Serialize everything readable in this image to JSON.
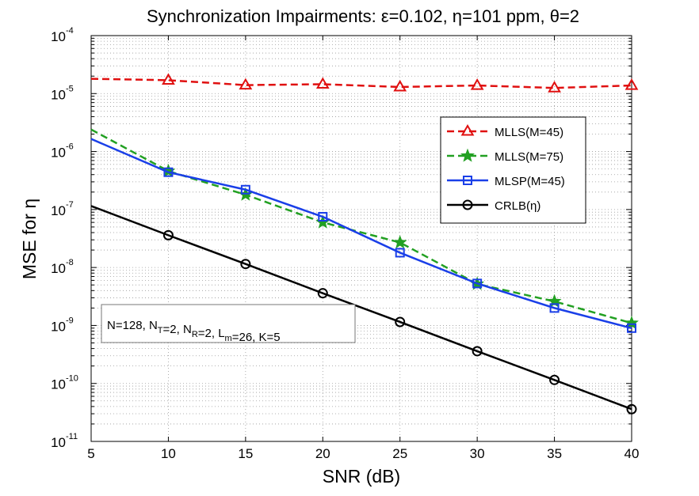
{
  "chart_data": {
    "type": "line",
    "title": "Synchronization Impairments: ε=0.102, η=101 ppm, θ=2",
    "xlabel": "SNR (dB)",
    "ylabel": "MSE for η",
    "xlim": [
      5,
      40
    ],
    "ylim": [
      1e-11,
      0.0001
    ],
    "yscale": "log",
    "grid": true,
    "legend_position": "right",
    "x_ticks": [
      "5",
      "10",
      "15",
      "20",
      "25",
      "30",
      "35",
      "40"
    ],
    "y_ticks": [
      {
        "base": "10",
        "exp": "-11",
        "value": 1e-11
      },
      {
        "base": "10",
        "exp": "-10",
        "value": 1e-10
      },
      {
        "base": "10",
        "exp": "-9",
        "value": 1e-09
      },
      {
        "base": "10",
        "exp": "-8",
        "value": 1e-08
      },
      {
        "base": "10",
        "exp": "-7",
        "value": 1e-07
      },
      {
        "base": "10",
        "exp": "-6",
        "value": 1e-06
      },
      {
        "base": "10",
        "exp": "-5",
        "value": 1e-05
      },
      {
        "base": "10",
        "exp": "-4",
        "value": 0.0001
      }
    ],
    "series": [
      {
        "name": "MLLS(M=45)",
        "color": "#e01010",
        "dash": "dashed",
        "marker": "triangle",
        "x": [
          5,
          10,
          15,
          20,
          25,
          30,
          35,
          40
        ],
        "y": [
          1.8e-05,
          1.7e-05,
          1.4e-05,
          1.45e-05,
          1.3e-05,
          1.38e-05,
          1.25e-05,
          1.38e-05
        ],
        "marker_x": [
          10,
          15,
          20,
          25,
          30,
          35,
          40
        ]
      },
      {
        "name": "MLLS(M=75)",
        "color": "#22a022",
        "dash": "dashed",
        "marker": "star",
        "x": [
          5,
          10,
          15,
          20,
          25,
          30,
          35,
          40
        ],
        "y": [
          2.4e-06,
          4.6e-07,
          1.8e-07,
          6e-08,
          2.7e-08,
          5.2e-09,
          2.6e-09,
          1.1e-09
        ],
        "marker_x": [
          10,
          15,
          20,
          25,
          30,
          35,
          40
        ]
      },
      {
        "name": "MLSP(M=45)",
        "color": "#1a3fe8",
        "dash": "solid",
        "marker": "square",
        "x": [
          5,
          10,
          15,
          20,
          25,
          30,
          35,
          40
        ],
        "y": [
          1.65e-06,
          4.4e-07,
          2.2e-07,
          7.5e-08,
          1.8e-08,
          5.3e-09,
          2e-09,
          9e-10
        ],
        "marker_x": [
          10,
          15,
          20,
          25,
          30,
          35,
          40
        ]
      },
      {
        "name": "CRLB(η)",
        "color": "#000000",
        "dash": "solid",
        "marker": "circle",
        "x": [
          5,
          10,
          15,
          20,
          25,
          30,
          35,
          40
        ],
        "y": [
          1.15e-07,
          3.6e-08,
          1.15e-08,
          3.6e-09,
          1.15e-09,
          3.6e-10,
          1.15e-10,
          3.6e-11
        ],
        "marker_x": [
          10,
          15,
          20,
          25,
          30,
          35,
          40
        ]
      }
    ],
    "annotation": {
      "parts": [
        {
          "t": "N=128, N",
          "s": ""
        },
        {
          "t": "T",
          "s": "sub"
        },
        {
          "t": "=2, N",
          "s": ""
        },
        {
          "t": "R",
          "s": "sub"
        },
        {
          "t": "=2, L",
          "s": ""
        },
        {
          "t": "m",
          "s": "sub"
        },
        {
          "t": "=26, K=5",
          "s": ""
        }
      ]
    }
  }
}
